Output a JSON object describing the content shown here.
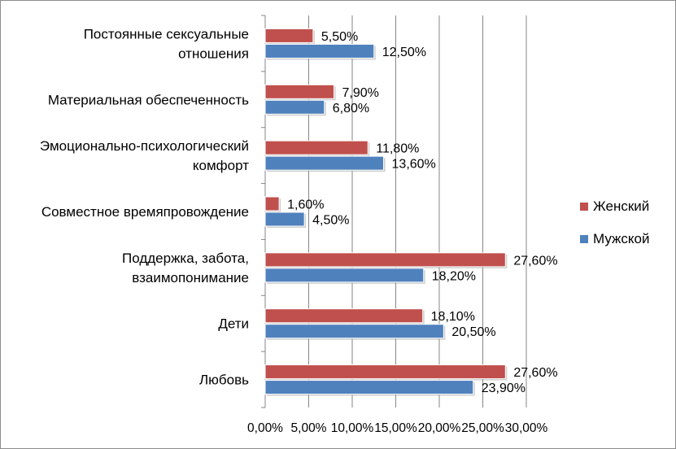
{
  "chart_data": {
    "type": "bar",
    "orientation": "horizontal",
    "categories": [
      [
        "Постоянные сексуальные",
        "отношения"
      ],
      [
        "Материальная обеспеченность"
      ],
      [
        "Эмоционально-психологический",
        "комфорт"
      ],
      [
        "Совместное времяпровождение"
      ],
      [
        "Поддержка, забота,",
        "взаимопонимание "
      ],
      [
        "Дети"
      ],
      [
        "Любовь"
      ]
    ],
    "series": [
      {
        "name": "Женский",
        "color": "#c0504d",
        "values": [
          5.5,
          7.9,
          11.8,
          1.6,
          27.6,
          18.1,
          27.6
        ],
        "labels": [
          "5,50%",
          "7,90%",
          "11,80%",
          "1,60%",
          "27,60%",
          "18,10%",
          "27,60%"
        ]
      },
      {
        "name": "Мужской",
        "color": "#4f81bd",
        "values": [
          12.5,
          6.8,
          13.6,
          4.5,
          18.2,
          20.5,
          23.9
        ],
        "labels": [
          "12,50%",
          "6,80%",
          "13,60%",
          "4,50%",
          "18,20%",
          "20,50%",
          "23,90%"
        ]
      }
    ],
    "xlim": [
      0,
      30
    ],
    "xticks": [
      "0,00%",
      "5,00%",
      "10,00%",
      "15,00%",
      "20,00%",
      "25,00%",
      "30,00%"
    ],
    "grid": true,
    "legend_position": "right"
  }
}
